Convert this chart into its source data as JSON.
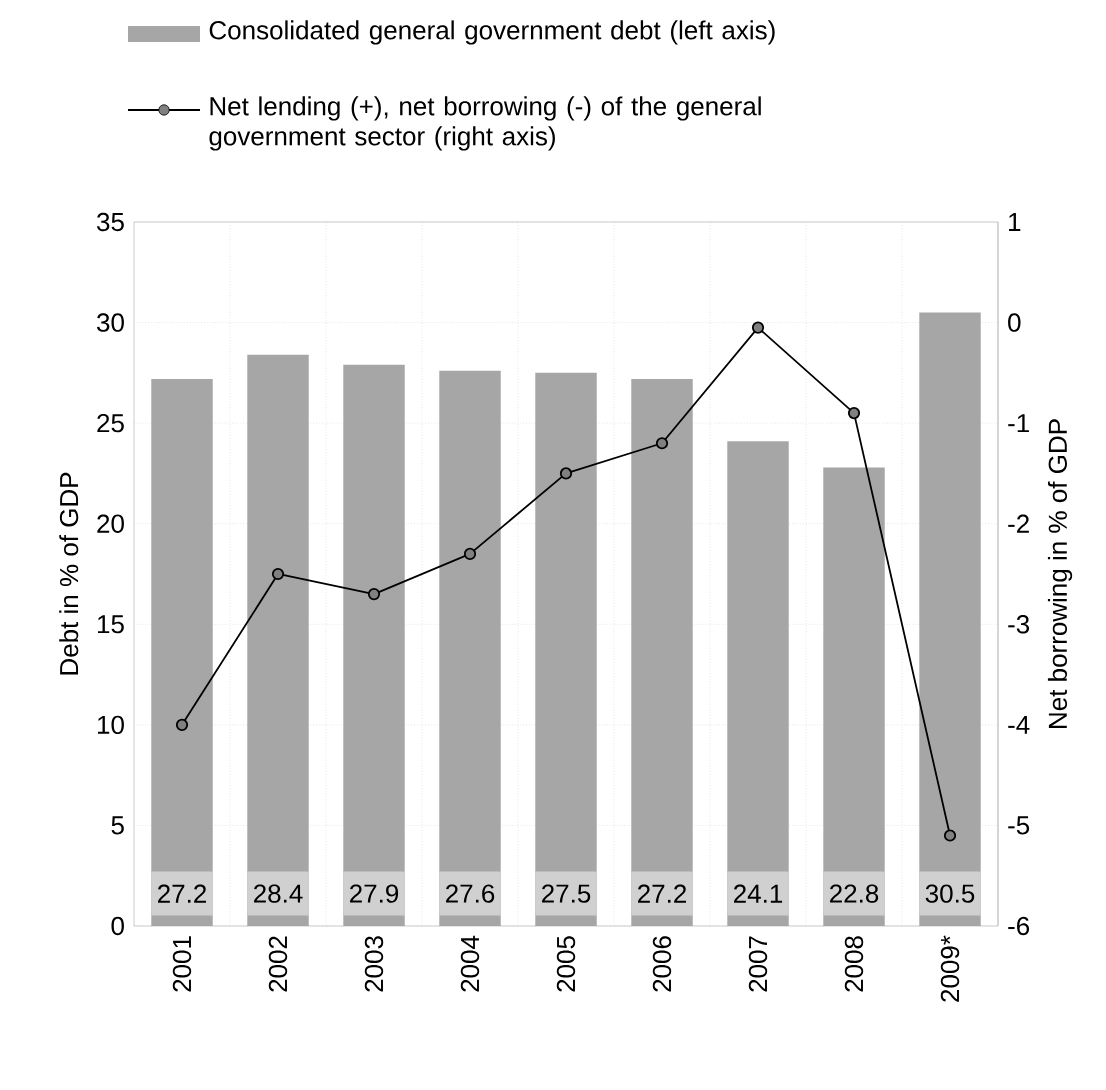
{
  "chart_data": {
    "type": "bar",
    "categories": [
      "2001",
      "2002",
      "2003",
      "2004",
      "2005",
      "2006",
      "2007",
      "2008",
      "2009*"
    ],
    "series": [
      {
        "name": "Consolidated general government debt (left axis)",
        "color": "#a6a6a6",
        "values": [
          27.2,
          28.4,
          27.9,
          27.6,
          27.5,
          27.2,
          24.1,
          22.8,
          30.5
        ],
        "value_labels": [
          "27.2",
          "28.4",
          "27.9",
          "27.6",
          "27.5",
          "27.2",
          "24.1",
          "22.8",
          "30.5"
        ]
      },
      {
        "name": "Net lending (+), net borrowing (-) of the general government sector (right axis)",
        "type": "line",
        "axis": "y2",
        "color": "#000000",
        "values": [
          -4.0,
          -2.5,
          -2.7,
          -2.3,
          -1.5,
          -1.2,
          -0.05,
          -0.9,
          -5.1
        ]
      }
    ],
    "ylabel": "Debt in % of GDP",
    "y2label": "Net borrowing in % of GDP",
    "ylim": [
      0,
      35
    ],
    "yticks": [
      0,
      5,
      10,
      15,
      20,
      25,
      30,
      35
    ],
    "y2lim": [
      -6,
      1
    ],
    "y2ticks": [
      -6,
      -5,
      -4,
      -3,
      -2,
      -1,
      0,
      1
    ],
    "grid": true,
    "legend": "top",
    "marker": "circle",
    "line_style": "solid"
  }
}
